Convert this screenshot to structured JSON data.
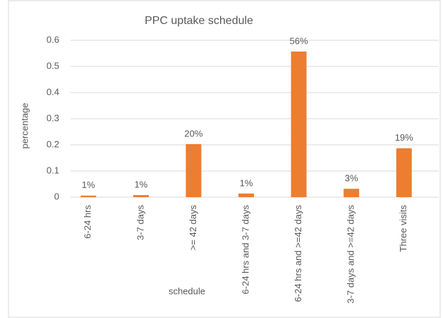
{
  "chart_data": {
    "type": "bar",
    "title": "PPC uptake schedule",
    "categories": [
      "6-24 hrs",
      "3-7 days",
      ">= 42 days",
      "6-24 hrs and 3-7 days",
      "6-24 hrs and >=42 days",
      "3-7 days and >=42 days",
      "Three visits"
    ],
    "values": [
      0.006,
      0.008,
      0.203,
      0.014,
      0.557,
      0.032,
      0.187
    ],
    "value_labels": [
      "1%",
      "1%",
      "20%",
      "1%",
      "56%",
      "3%",
      "19%"
    ],
    "color": "#ed7d31",
    "xlabel": "schedule",
    "ylabel": "percentage",
    "ylim": [
      0,
      0.6
    ],
    "yticks": [
      0,
      0.1,
      0.2,
      0.3,
      0.4,
      0.5,
      0.6
    ],
    "grid": true
  }
}
